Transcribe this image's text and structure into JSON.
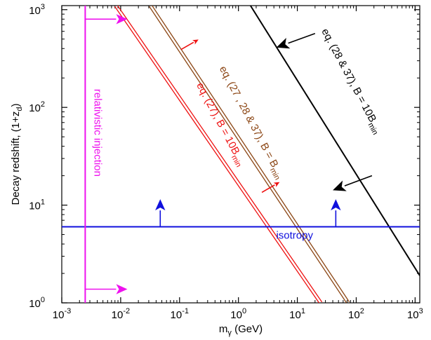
{
  "chart_data": {
    "type": "line",
    "xlabel_main": "m",
    "xlabel_sub": "γ",
    "xlabel_unit": " (GeV)",
    "ylabel_main": "Decay redshift,  (1+z",
    "ylabel_sub": "d",
    "ylabel_close": ")",
    "x_scale": "log",
    "y_scale": "log",
    "xlim": [
      0.001,
      1200
    ],
    "ylim": [
      1,
      1100
    ],
    "x_ticks": [
      {
        "base": "10",
        "exp": "-3",
        "value": 0.001
      },
      {
        "base": "10",
        "exp": "-2",
        "value": 0.01
      },
      {
        "base": "10",
        "exp": "-1",
        "value": 0.1
      },
      {
        "base": "10",
        "exp": "0",
        "value": 1
      },
      {
        "base": "10",
        "exp": "1",
        "value": 10
      },
      {
        "base": "10",
        "exp": "2",
        "value": 100
      },
      {
        "base": "10",
        "exp": "3",
        "value": 1000
      }
    ],
    "y_ticks": [
      {
        "base": "10",
        "exp": "0",
        "value": 1
      },
      {
        "base": "10",
        "exp": "1",
        "value": 10
      },
      {
        "base": "10",
        "exp": "2",
        "value": 100
      },
      {
        "base": "10",
        "exp": "3",
        "value": 1000
      }
    ],
    "series": [
      {
        "id": "red",
        "color": "#ee1111",
        "double": true,
        "x": [
          0.0083,
          25
        ],
        "y": [
          1100,
          1
        ]
      },
      {
        "id": "brown",
        "color": "#8b4513",
        "double": true,
        "x": [
          0.032,
          73
        ],
        "y": [
          1100,
          1
        ]
      },
      {
        "id": "black",
        "color": "#000000",
        "double": false,
        "x": [
          1.6,
          1200
        ],
        "y": [
          1100,
          1.9
        ]
      },
      {
        "id": "isotropy",
        "color": "#1010dd",
        "double": false,
        "x": [
          0.001,
          1200
        ],
        "y": [
          6,
          6
        ]
      },
      {
        "id": "relativistic",
        "color": "#ee11ee",
        "double": false,
        "x": [
          0.0025,
          0.0025
        ],
        "y": [
          1,
          1100
        ]
      }
    ],
    "arrows": [
      {
        "color": "#ee11ee",
        "x1": 0.0025,
        "y1": 800,
        "x2": 0.013,
        "y2": 800,
        "head": 16
      },
      {
        "color": "#ee11ee",
        "x1": 0.0025,
        "y1": 1.38,
        "x2": 0.013,
        "y2": 1.38,
        "head": 16
      },
      {
        "color": "#1010dd",
        "x1": 0.047,
        "y1": 6,
        "x2": 0.047,
        "y2": 11.5,
        "head": 16
      },
      {
        "color": "#1010dd",
        "x1": 45,
        "y1": 6,
        "x2": 45,
        "y2": 11.5,
        "head": 16
      },
      {
        "color": "#ee1111",
        "x1": 0.105,
        "y1": 390,
        "x2": 0.21,
        "y2": 495,
        "head": 8
      },
      {
        "color": "#ee1111",
        "x1": 2.5,
        "y1": 13.5,
        "x2": 5.0,
        "y2": 17.2,
        "head": 8
      },
      {
        "color": "#000000",
        "x1": 20,
        "y1": 570,
        "x2": 4.4,
        "y2": 410,
        "head": 18
      },
      {
        "color": "#000000",
        "x1": 185,
        "y1": 20,
        "x2": 40,
        "y2": 14.2,
        "head": 18
      }
    ],
    "annotations": [
      {
        "id": "isotropy",
        "text": "isotropy",
        "color": "#1010dd",
        "x": 9,
        "y": 4.55,
        "rotate": 0,
        "subscript": ""
      },
      {
        "id": "relativistic",
        "text": "relativistic injection",
        "color": "#ee11ee",
        "x": 0.0036,
        "y": 55,
        "rotate": 90,
        "subscript": ""
      },
      {
        "id": "red",
        "text": "eq. (27), B = 10B",
        "subscript": "min",
        "color": "#ee1111",
        "x": 0.45,
        "y": 65,
        "rotate": 62
      },
      {
        "id": "brown",
        "text": "eq. (27 , 28 & 37), B = B",
        "subscript": "min",
        "color": "#8b4513",
        "x": 1.5,
        "y": 68,
        "rotate": 62
      },
      {
        "id": "black",
        "text": "eq. (28 & 37), B = 10B",
        "subscript": "min",
        "color": "#000000",
        "x": 75,
        "y": 180,
        "rotate": 62
      }
    ]
  }
}
